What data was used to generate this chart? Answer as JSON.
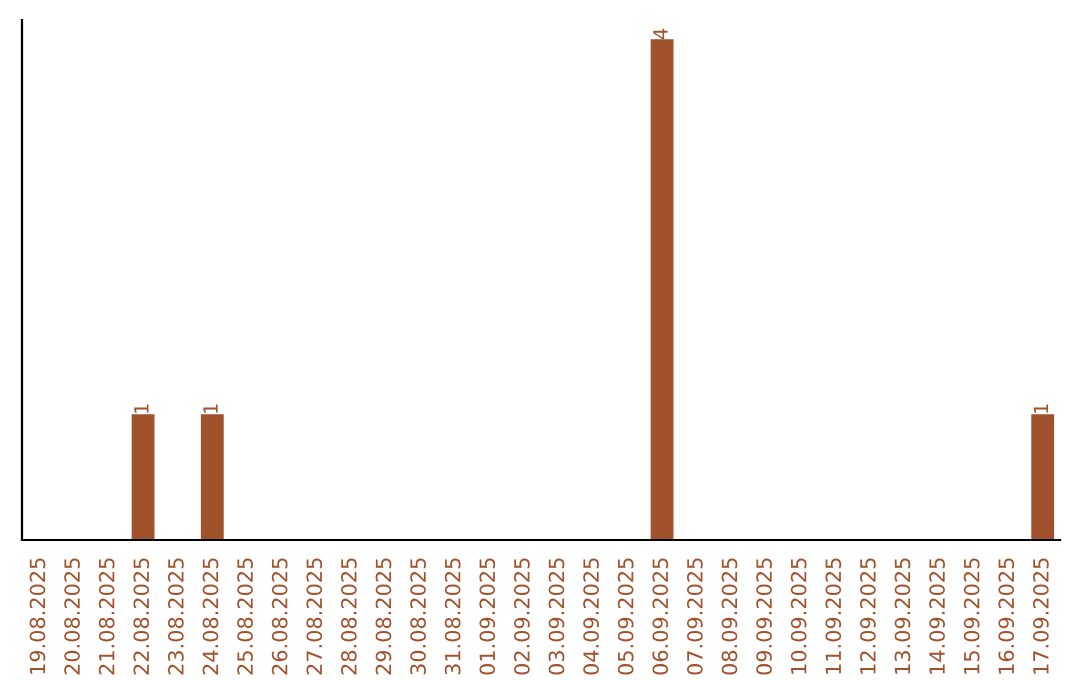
{
  "chart_data": {
    "type": "bar",
    "categories": [
      "19.08.2025",
      "20.08.2025",
      "21.08.2025",
      "22.08.2025",
      "23.08.2025",
      "24.08.2025",
      "25.08.2025",
      "26.08.2025",
      "27.08.2025",
      "28.08.2025",
      "29.08.2025",
      "30.08.2025",
      "31.08.2025",
      "01.09.2025",
      "02.09.2025",
      "03.09.2025",
      "04.09.2025",
      "05.09.2025",
      "06.09.2025",
      "07.09.2025",
      "08.09.2025",
      "09.09.2025",
      "10.09.2025",
      "11.09.2025",
      "12.09.2025",
      "13.09.2025",
      "14.09.2025",
      "15.09.2025",
      "16.09.2025",
      "17.09.2025"
    ],
    "values": [
      0,
      0,
      0,
      1,
      0,
      1,
      0,
      0,
      0,
      0,
      0,
      0,
      0,
      0,
      0,
      0,
      0,
      0,
      4,
      0,
      0,
      0,
      0,
      0,
      0,
      0,
      0,
      0,
      0,
      1
    ],
    "color": "#a0522d",
    "value_labels": [
      null,
      null,
      null,
      "1",
      null,
      "1",
      null,
      null,
      null,
      null,
      null,
      null,
      null,
      null,
      null,
      null,
      null,
      null,
      "4",
      null,
      null,
      null,
      null,
      null,
      null,
      null,
      null,
      null,
      null,
      "1"
    ],
    "tick_labels": "x",
    "grid": false,
    "legend": false
  }
}
